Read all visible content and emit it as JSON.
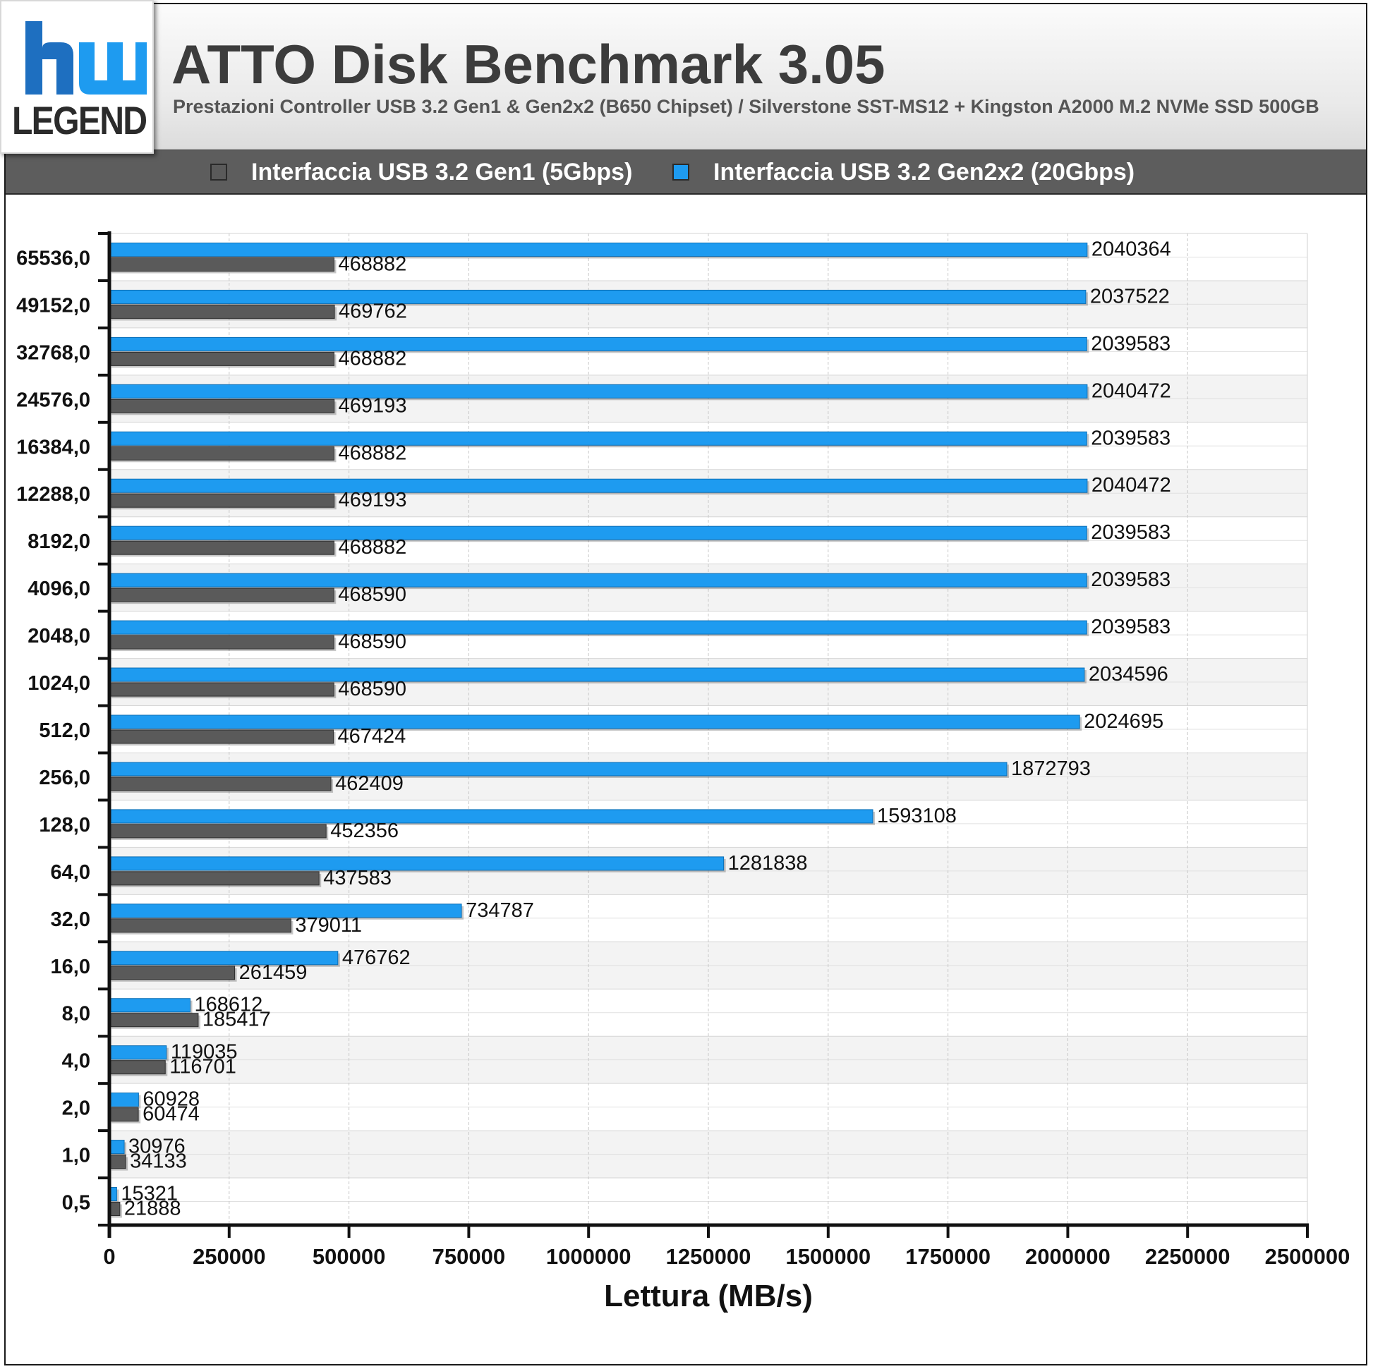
{
  "header": {
    "logo_text": "LEGEND",
    "title": "ATTO Disk Benchmark 3.05",
    "subtitle": "Prestazioni Controller USB 3.2 Gen1 & Gen2x2 (B650 Chipset) / Silverstone SST-MS12 + Kingston A2000 M.2 NVMe SSD 500GB"
  },
  "legend": {
    "items": [
      {
        "label": "Interfaccia USB 3.2 Gen1 (5Gbps)",
        "color": "#5a5a5a"
      },
      {
        "label": "Interfaccia USB 3.2 Gen2x2 (20Gbps)",
        "color": "#1e9bf0"
      }
    ]
  },
  "colors": {
    "gen1": "#5a5a5a",
    "gen2x2": "#1e9bf0",
    "band_light": "#f3f3f3",
    "band_white": "#ffffff",
    "grid": "#c8c8c8"
  },
  "chart_data": {
    "type": "bar",
    "orientation": "horizontal",
    "xlabel": "Lettura (MB/s)",
    "ylabel": "",
    "xlim": [
      0,
      2500000
    ],
    "xticks": [
      0,
      250000,
      500000,
      750000,
      1000000,
      1250000,
      1500000,
      1750000,
      2000000,
      2250000,
      2500000
    ],
    "xtick_labels": [
      "0",
      "250000",
      "500000",
      "750000",
      "1000000",
      "1250000",
      "1500000",
      "1750000",
      "2000000",
      "2250000",
      "2500000"
    ],
    "grid": true,
    "legend_position": "top",
    "categories": [
      "65536,0",
      "49152,0",
      "32768,0",
      "24576,0",
      "16384,0",
      "12288,0",
      "8192,0",
      "4096,0",
      "2048,0",
      "1024,0",
      "512,0",
      "256,0",
      "128,0",
      "64,0",
      "32,0",
      "16,0",
      "8,0",
      "4,0",
      "2,0",
      "1,0",
      "0,5"
    ],
    "series": [
      {
        "name": "Interfaccia USB 3.2 Gen2x2 (20Gbps)",
        "color": "#1e9bf0",
        "values": [
          2040364,
          2037522,
          2039583,
          2040472,
          2039583,
          2040472,
          2039583,
          2039583,
          2039583,
          2034596,
          2024695,
          1872793,
          1593108,
          1281838,
          734787,
          476762,
          168612,
          119035,
          60928,
          30976,
          15321
        ]
      },
      {
        "name": "Interfaccia USB 3.2 Gen1 (5Gbps)",
        "color": "#5a5a5a",
        "values": [
          468882,
          469762,
          468882,
          469193,
          468882,
          469193,
          468882,
          468590,
          468590,
          468590,
          467424,
          462409,
          452356,
          437583,
          379011,
          261459,
          185417,
          116701,
          60474,
          34133,
          21888
        ]
      }
    ]
  }
}
